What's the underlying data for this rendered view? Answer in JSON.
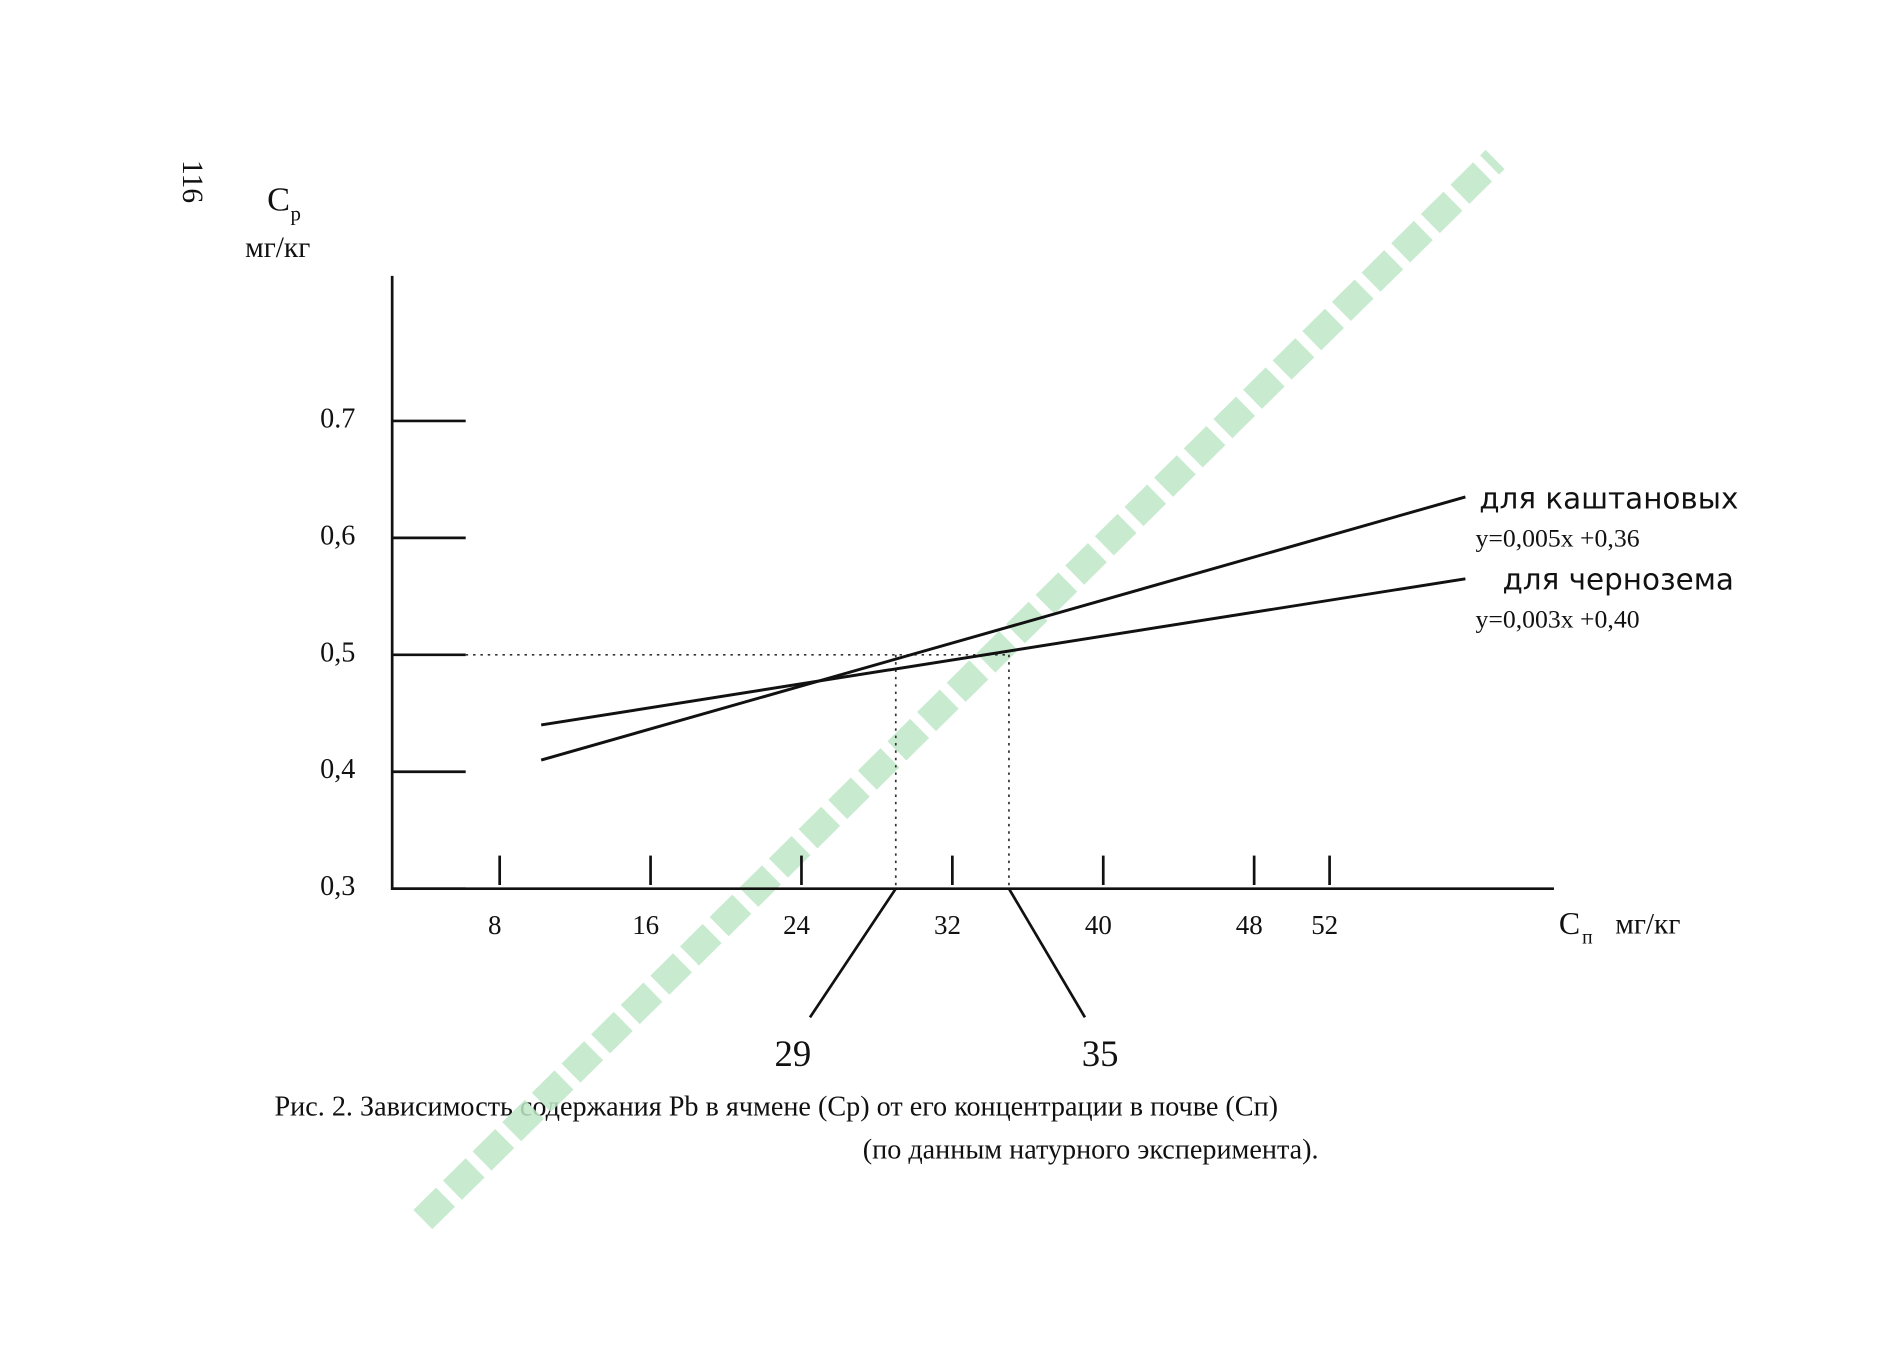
{
  "page_number": "116",
  "chart_data": {
    "type": "line",
    "y_label": {
      "symbol": "C",
      "subscript": "р",
      "unit": "мг/кг"
    },
    "x_label": {
      "symbol": "C",
      "subscript": "п",
      "unit": "мг/кг"
    },
    "x": [
      10.2,
      59.2
    ],
    "series": [
      {
        "name": "для каштановых",
        "equation": "y=0,005x +0,36",
        "color": "#111111",
        "values": [
          0.41,
          0.635
        ]
      },
      {
        "name": "для чернозема",
        "equation": "y=0,003x +0,40",
        "color": "#111111",
        "values": [
          0.44,
          0.565
        ]
      }
    ],
    "xlim": [
      2.3,
      63.7
    ],
    "ylim": [
      0.3,
      0.824
    ],
    "xticks": [
      8,
      16,
      24,
      32,
      40,
      48,
      52
    ],
    "yticks": [
      {
        "value": 0.3,
        "label": "0,3"
      },
      {
        "value": 0.4,
        "label": "0,4"
      },
      {
        "value": 0.5,
        "label": "0,5"
      },
      {
        "value": 0.6,
        "label": "0,6"
      },
      {
        "value": 0.7,
        "label": "0.7"
      }
    ],
    "reference_y": 0.5,
    "annotations": [
      29,
      35
    ],
    "caption": [
      "Рис. 2. Зависимость содержания Pb в ячмене (Cр) от его концентрации в почве (Cп)",
      "(по данным натурного эксперимента)."
    ]
  }
}
